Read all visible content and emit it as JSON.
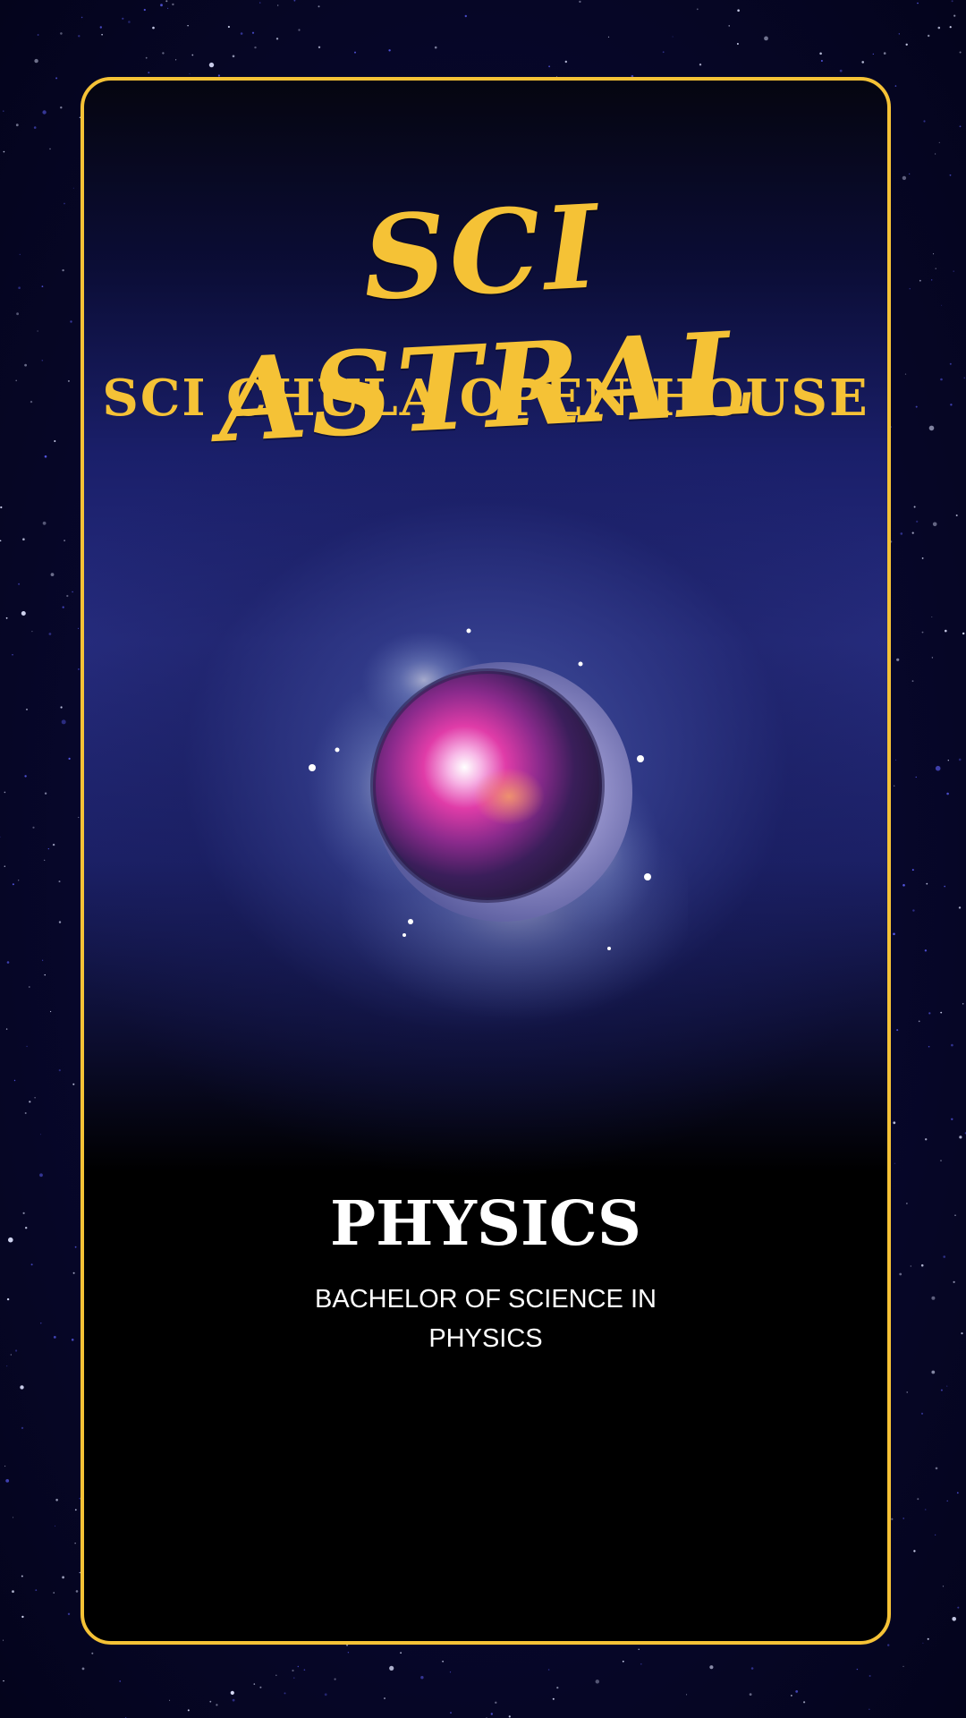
{
  "poster": {
    "title": "SCI ASTRAL",
    "subtitle": "SCI CHULA OPEN HOUSE",
    "major": "PHYSICS",
    "degree": "BACHELOR OF SCIENCE IN PHYSICS"
  },
  "emblem": {
    "icon": "watercolor-moon-nebula-icon"
  },
  "colors": {
    "accent": "#f5c236",
    "text": "#ffffff",
    "background": "#07072a"
  }
}
